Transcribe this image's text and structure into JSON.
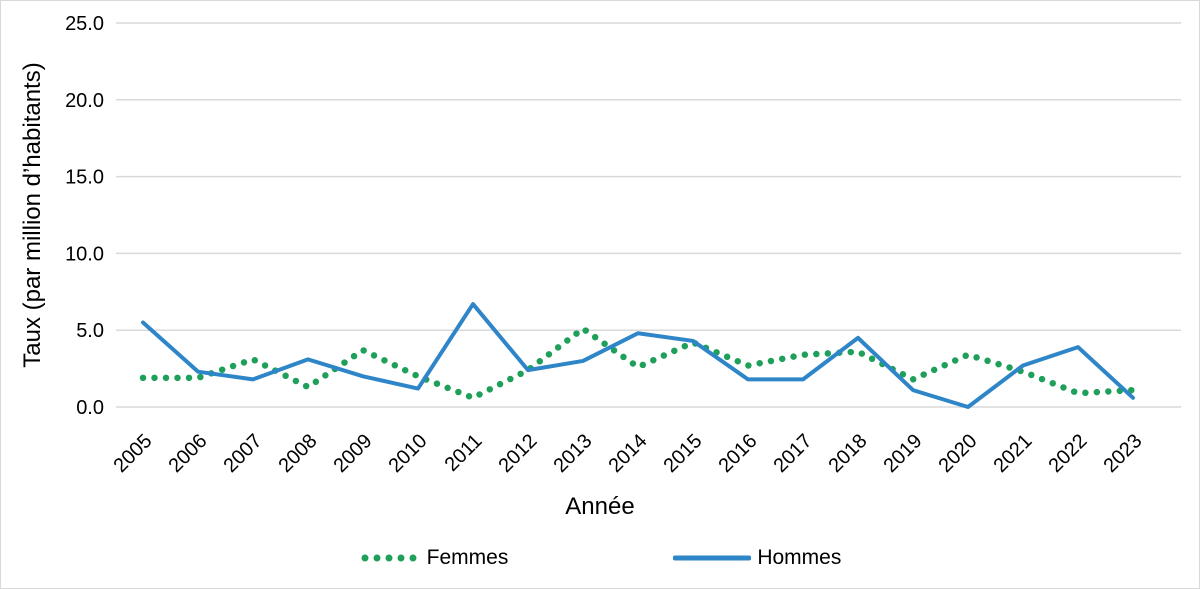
{
  "figure": {
    "background": "#ffffff",
    "border_color": "#d9d9d9"
  },
  "chart_data": {
    "type": "line",
    "title": "",
    "xlabel": "Année",
    "ylabel": "Taux (par million d’habitants)",
    "categories": [
      "2005",
      "2006",
      "2007",
      "2008",
      "2009",
      "2010",
      "2011",
      "2012",
      "2013",
      "2014",
      "2015",
      "2016",
      "2017",
      "2018",
      "2019",
      "2020",
      "2021",
      "2022",
      "2023"
    ],
    "series": [
      {
        "name": "Femmes",
        "style": "dotted",
        "color": "#1FA05A",
        "values": [
          1.9,
          1.9,
          3.1,
          1.3,
          3.7,
          2.0,
          0.6,
          2.4,
          5.1,
          2.6,
          4.2,
          2.7,
          3.4,
          3.6,
          1.8,
          3.4,
          2.3,
          0.9,
          1.1
        ]
      },
      {
        "name": "Hommes",
        "style": "solid",
        "color": "#2E86C8",
        "values": [
          5.5,
          2.3,
          1.8,
          3.1,
          2.0,
          1.2,
          6.7,
          2.4,
          3.0,
          4.8,
          4.3,
          1.8,
          1.8,
          4.5,
          1.1,
          0.0,
          2.7,
          3.9,
          0.6
        ]
      }
    ],
    "ylim": [
      0,
      25
    ],
    "yticks": [
      0,
      5,
      10,
      15,
      20,
      25
    ],
    "ytick_labels": [
      "0.0",
      "5.0",
      "10.0",
      "15.0",
      "20.0",
      "25.0"
    ],
    "grid": "horizontal",
    "gridline_color": "#D9D9D9",
    "text_color": "#000000",
    "legend_position": "bottom"
  }
}
